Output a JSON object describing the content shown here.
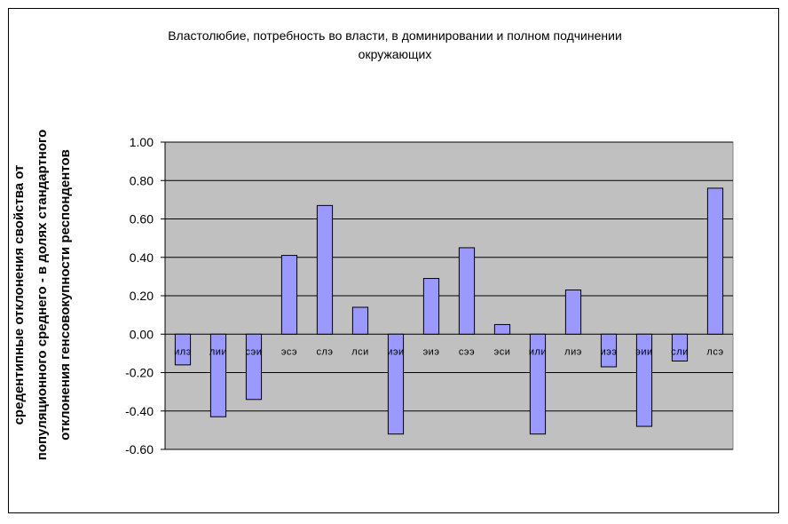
{
  "chart_data": {
    "type": "bar",
    "title": [
      "Властолюбие, потребность во власти, в доминировании и полном подчинении",
      "окружающих"
    ],
    "ylabel": [
      "средентипные отклонения свойства от",
      "популяционного среднего - в долях стандартного",
      "отклонения генсовокупности респондентов"
    ],
    "xlabel": "",
    "categories": [
      "илэ",
      "лии",
      "сэи",
      "эсэ",
      "слэ",
      "лси",
      "иэи",
      "эиэ",
      "сээ",
      "эси",
      "или",
      "лиэ",
      "иээ",
      "эии",
      "сли",
      "лсэ"
    ],
    "values": [
      -0.16,
      -0.43,
      -0.34,
      0.41,
      0.67,
      0.14,
      -0.52,
      0.29,
      0.45,
      0.05,
      -0.52,
      0.23,
      -0.17,
      -0.48,
      -0.14,
      0.76
    ],
    "ylim": [
      -0.6,
      1.0
    ],
    "yticks": [
      "1.00",
      "0.80",
      "0.60",
      "0.40",
      "0.20",
      "0.00",
      "-0.20",
      "-0.40",
      "-0.60"
    ],
    "grid": true,
    "legend": "none",
    "colors": {
      "bar_fill": "#9999ff",
      "bar_stroke": "#000000",
      "plot_background": "#c0c0c0",
      "gridline": "#000000"
    }
  }
}
